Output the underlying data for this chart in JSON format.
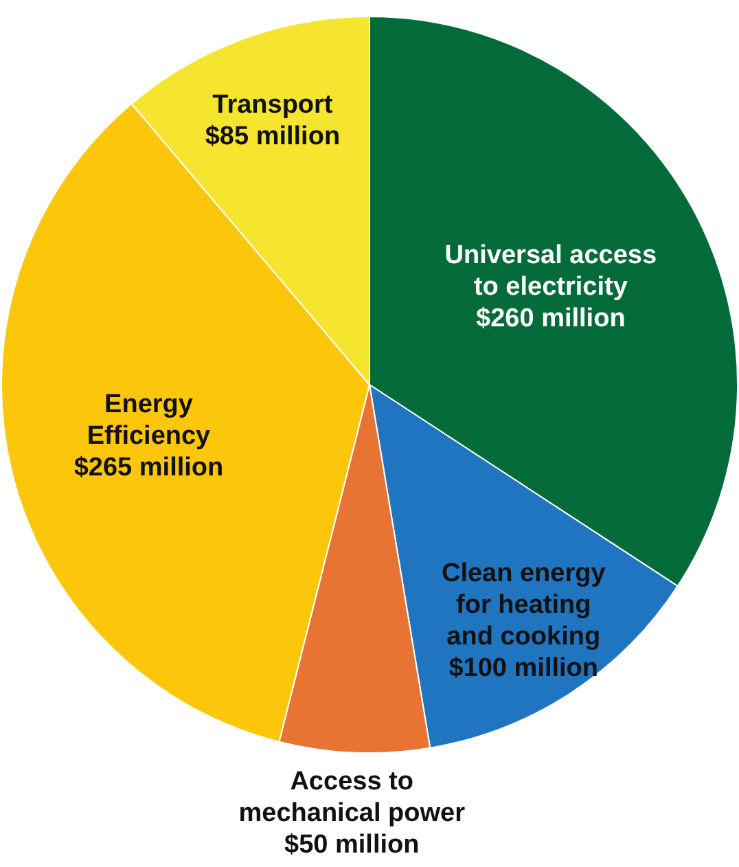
{
  "chart_data": {
    "type": "pie",
    "categories": [
      "Universal access to electricity",
      "Clean energy for heating and cooking",
      "Access to mechanical power",
      "Energy Efficiency",
      "Transport"
    ],
    "values": [
      260,
      100,
      50,
      265,
      85
    ],
    "value_labels": [
      "$260 million",
      "$100 million",
      "$50 million",
      "$265 million",
      "$85 million"
    ],
    "colors": [
      "#036b3a",
      "#1f75c0",
      "#e87434",
      "#fcc60a",
      "#f6e52e"
    ]
  }
}
